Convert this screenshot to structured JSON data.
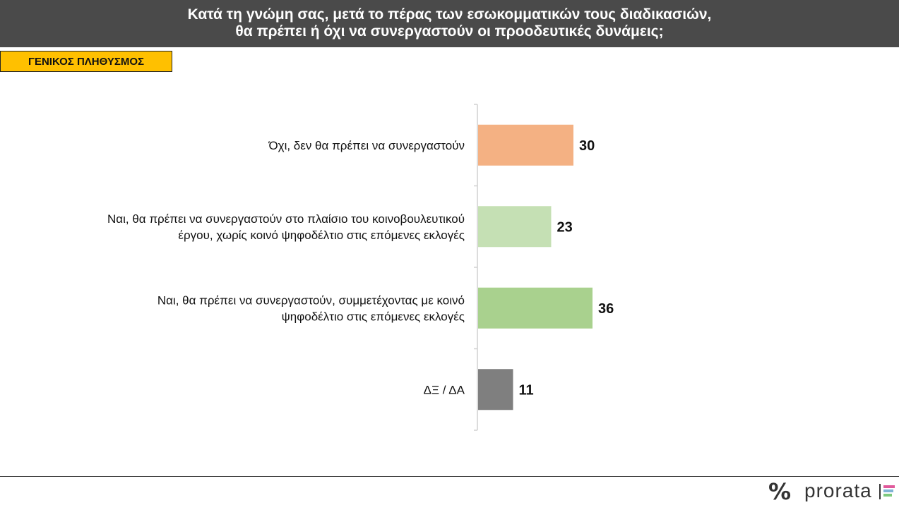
{
  "header": {
    "title_line1": "Κατά τη γνώμη σας, μετά το πέρας των εσωκομματικών τους διαδικασιών,",
    "title_line2": "θα πρέπει ή όχι να συνεργαστούν οι προοδευτικές δυνάμεις;"
  },
  "badge": {
    "label": "ΓΕΝΙΚΟΣ ΠΛΗΘΥΣΜΟΣ"
  },
  "chart_data": {
    "type": "bar",
    "orientation": "horizontal",
    "categories": [
      [
        "Όχι, δεν θα πρέπει να συνεργαστούν"
      ],
      [
        "Ναι, θα πρέπει να συνεργαστούν στο πλαίσιο του κοινοβουλευτικού",
        "έργου, χωρίς κοινό ψηφοδέλτιο στις επόμενες εκλογές"
      ],
      [
        "Ναι, θα πρέπει να συνεργαστούν, συμμετέχοντας με κοινό",
        "ψηφοδέλτιο στις επόμενες εκλογές"
      ],
      [
        "ΔΞ / ΔΑ"
      ]
    ],
    "values": [
      30,
      23,
      36,
      11
    ],
    "colors": [
      "#f4b183",
      "#c5e0b4",
      "#a9d18e",
      "#7f7f7f"
    ],
    "xlim": [
      0,
      100
    ],
    "data_labels": true,
    "grid": false
  },
  "logo": {
    "symbol": "%",
    "word": "prorata",
    "line_colors": [
      "#e05a9b",
      "#7fb3d5",
      "#7dc97d"
    ]
  }
}
